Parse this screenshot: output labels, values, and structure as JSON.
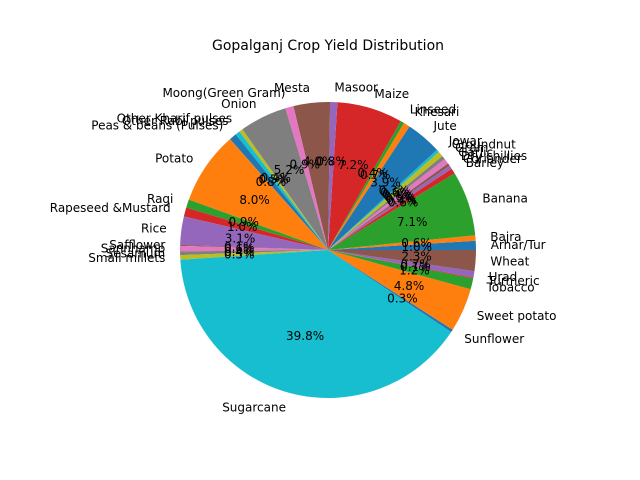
{
  "chart_data": {
    "type": "pie",
    "title": "Gopalganj Crop Yield Distribution",
    "start_angle_deg": 0,
    "direction": "counterclockwise",
    "slices": [
      {
        "label": "Arhar/Tur",
        "value": 1.0,
        "pct_label": "1.0%",
        "color": "#1f77b4"
      },
      {
        "label": "Bajra",
        "value": 0.6,
        "pct_label": "0.6%",
        "color": "#ff7f0e"
      },
      {
        "label": "Banana",
        "value": 7.1,
        "pct_label": "7.1%",
        "color": "#2ca02c"
      },
      {
        "label": "Barley",
        "value": 0.6,
        "pct_label": "0.6%",
        "color": "#d62728"
      },
      {
        "label": "Coriander",
        "value": 0.4,
        "pct_label": "0.4%",
        "color": "#9467bd"
      },
      {
        "label": "Dry chillies",
        "value": 0.3,
        "pct_label": "0.3%",
        "color": "#8c564b"
      },
      {
        "label": "Garlic",
        "value": 0.6,
        "pct_label": "0.6%",
        "color": "#e377c2"
      },
      {
        "label": "Gram",
        "value": 0.4,
        "pct_label": "0.4%",
        "color": "#7f7f7f"
      },
      {
        "label": "Groundnut",
        "value": 0.6,
        "pct_label": "0.6%",
        "color": "#bcbd22"
      },
      {
        "label": "Jowar",
        "value": 0.3,
        "pct_label": "0.3%",
        "color": "#17becf"
      },
      {
        "label": "Jute",
        "value": 3.9,
        "pct_label": "3.9%",
        "color": "#1f77b4"
      },
      {
        "label": "Khesari",
        "value": 0.7,
        "pct_label": "0.7%",
        "color": "#ff7f0e"
      },
      {
        "label": "Linseed",
        "value": 0.4,
        "pct_label": "0.4%",
        "color": "#2ca02c"
      },
      {
        "label": "Maize",
        "value": 7.2,
        "pct_label": "7.2%",
        "color": "#d62728"
      },
      {
        "label": "Masoor",
        "value": 0.8,
        "pct_label": "0.8%",
        "color": "#9467bd"
      },
      {
        "label": "Mesta",
        "value": 4.0,
        "pct_label": "4.0%",
        "color": "#8c564b"
      },
      {
        "label": "Moong(Green Gram)",
        "value": 0.9,
        "pct_label": "0.9%",
        "color": "#e377c2"
      },
      {
        "label": "Onion",
        "value": 5.2,
        "pct_label": "5.2%",
        "color": "#7f7f7f"
      },
      {
        "label": "Other Kharif pulses",
        "value": 0.4,
        "pct_label": "0.4%",
        "color": "#bcbd22"
      },
      {
        "label": "Other Rabi pulses",
        "value": 0.5,
        "pct_label": "0.5%",
        "color": "#17becf"
      },
      {
        "label": "Peas & beans (Pulses)",
        "value": 0.8,
        "pct_label": "0.8%",
        "color": "#1f77b4"
      },
      {
        "label": "Potato",
        "value": 8.0,
        "pct_label": "8.0%",
        "color": "#ff7f0e"
      },
      {
        "label": "Ragi",
        "value": 0.9,
        "pct_label": "0.9%",
        "color": "#2ca02c"
      },
      {
        "label": "Rapeseed &Mustard",
        "value": 1.0,
        "pct_label": "1.0%",
        "color": "#d62728"
      },
      {
        "label": "Rice",
        "value": 3.1,
        "pct_label": "3.1%",
        "color": "#9467bd"
      },
      {
        "label": "Safflower",
        "value": 0.1,
        "pct_label": "0.1%",
        "color": "#8c564b"
      },
      {
        "label": "Sannhamp",
        "value": 0.6,
        "pct_label": "0.6%",
        "color": "#e377c2"
      },
      {
        "label": "Sesamum",
        "value": 0.4,
        "pct_label": "0.4%",
        "color": "#7f7f7f"
      },
      {
        "label": "Small millets",
        "value": 0.5,
        "pct_label": "0.5%",
        "color": "#bcbd22"
      },
      {
        "label": "Sugarcane",
        "value": 39.8,
        "pct_label": "39.8%",
        "color": "#17becf"
      },
      {
        "label": "Sunflower",
        "value": 0.3,
        "pct_label": "0.3%",
        "color": "#1f77b4"
      },
      {
        "label": "Sweet potato",
        "value": 4.8,
        "pct_label": "4.8%",
        "color": "#ff7f0e"
      },
      {
        "label": "Tobacco",
        "value": 1.2,
        "pct_label": "1.2%",
        "color": "#2ca02c"
      },
      {
        "label": "Turmeric",
        "value": 0.1,
        "pct_label": "0.1%",
        "color": "#d62728"
      },
      {
        "label": "Urad",
        "value": 0.7,
        "pct_label": "0.7%",
        "color": "#9467bd"
      },
      {
        "label": "Wheat",
        "value": 2.3,
        "pct_label": "2.3%",
        "color": "#8c564b"
      }
    ]
  }
}
